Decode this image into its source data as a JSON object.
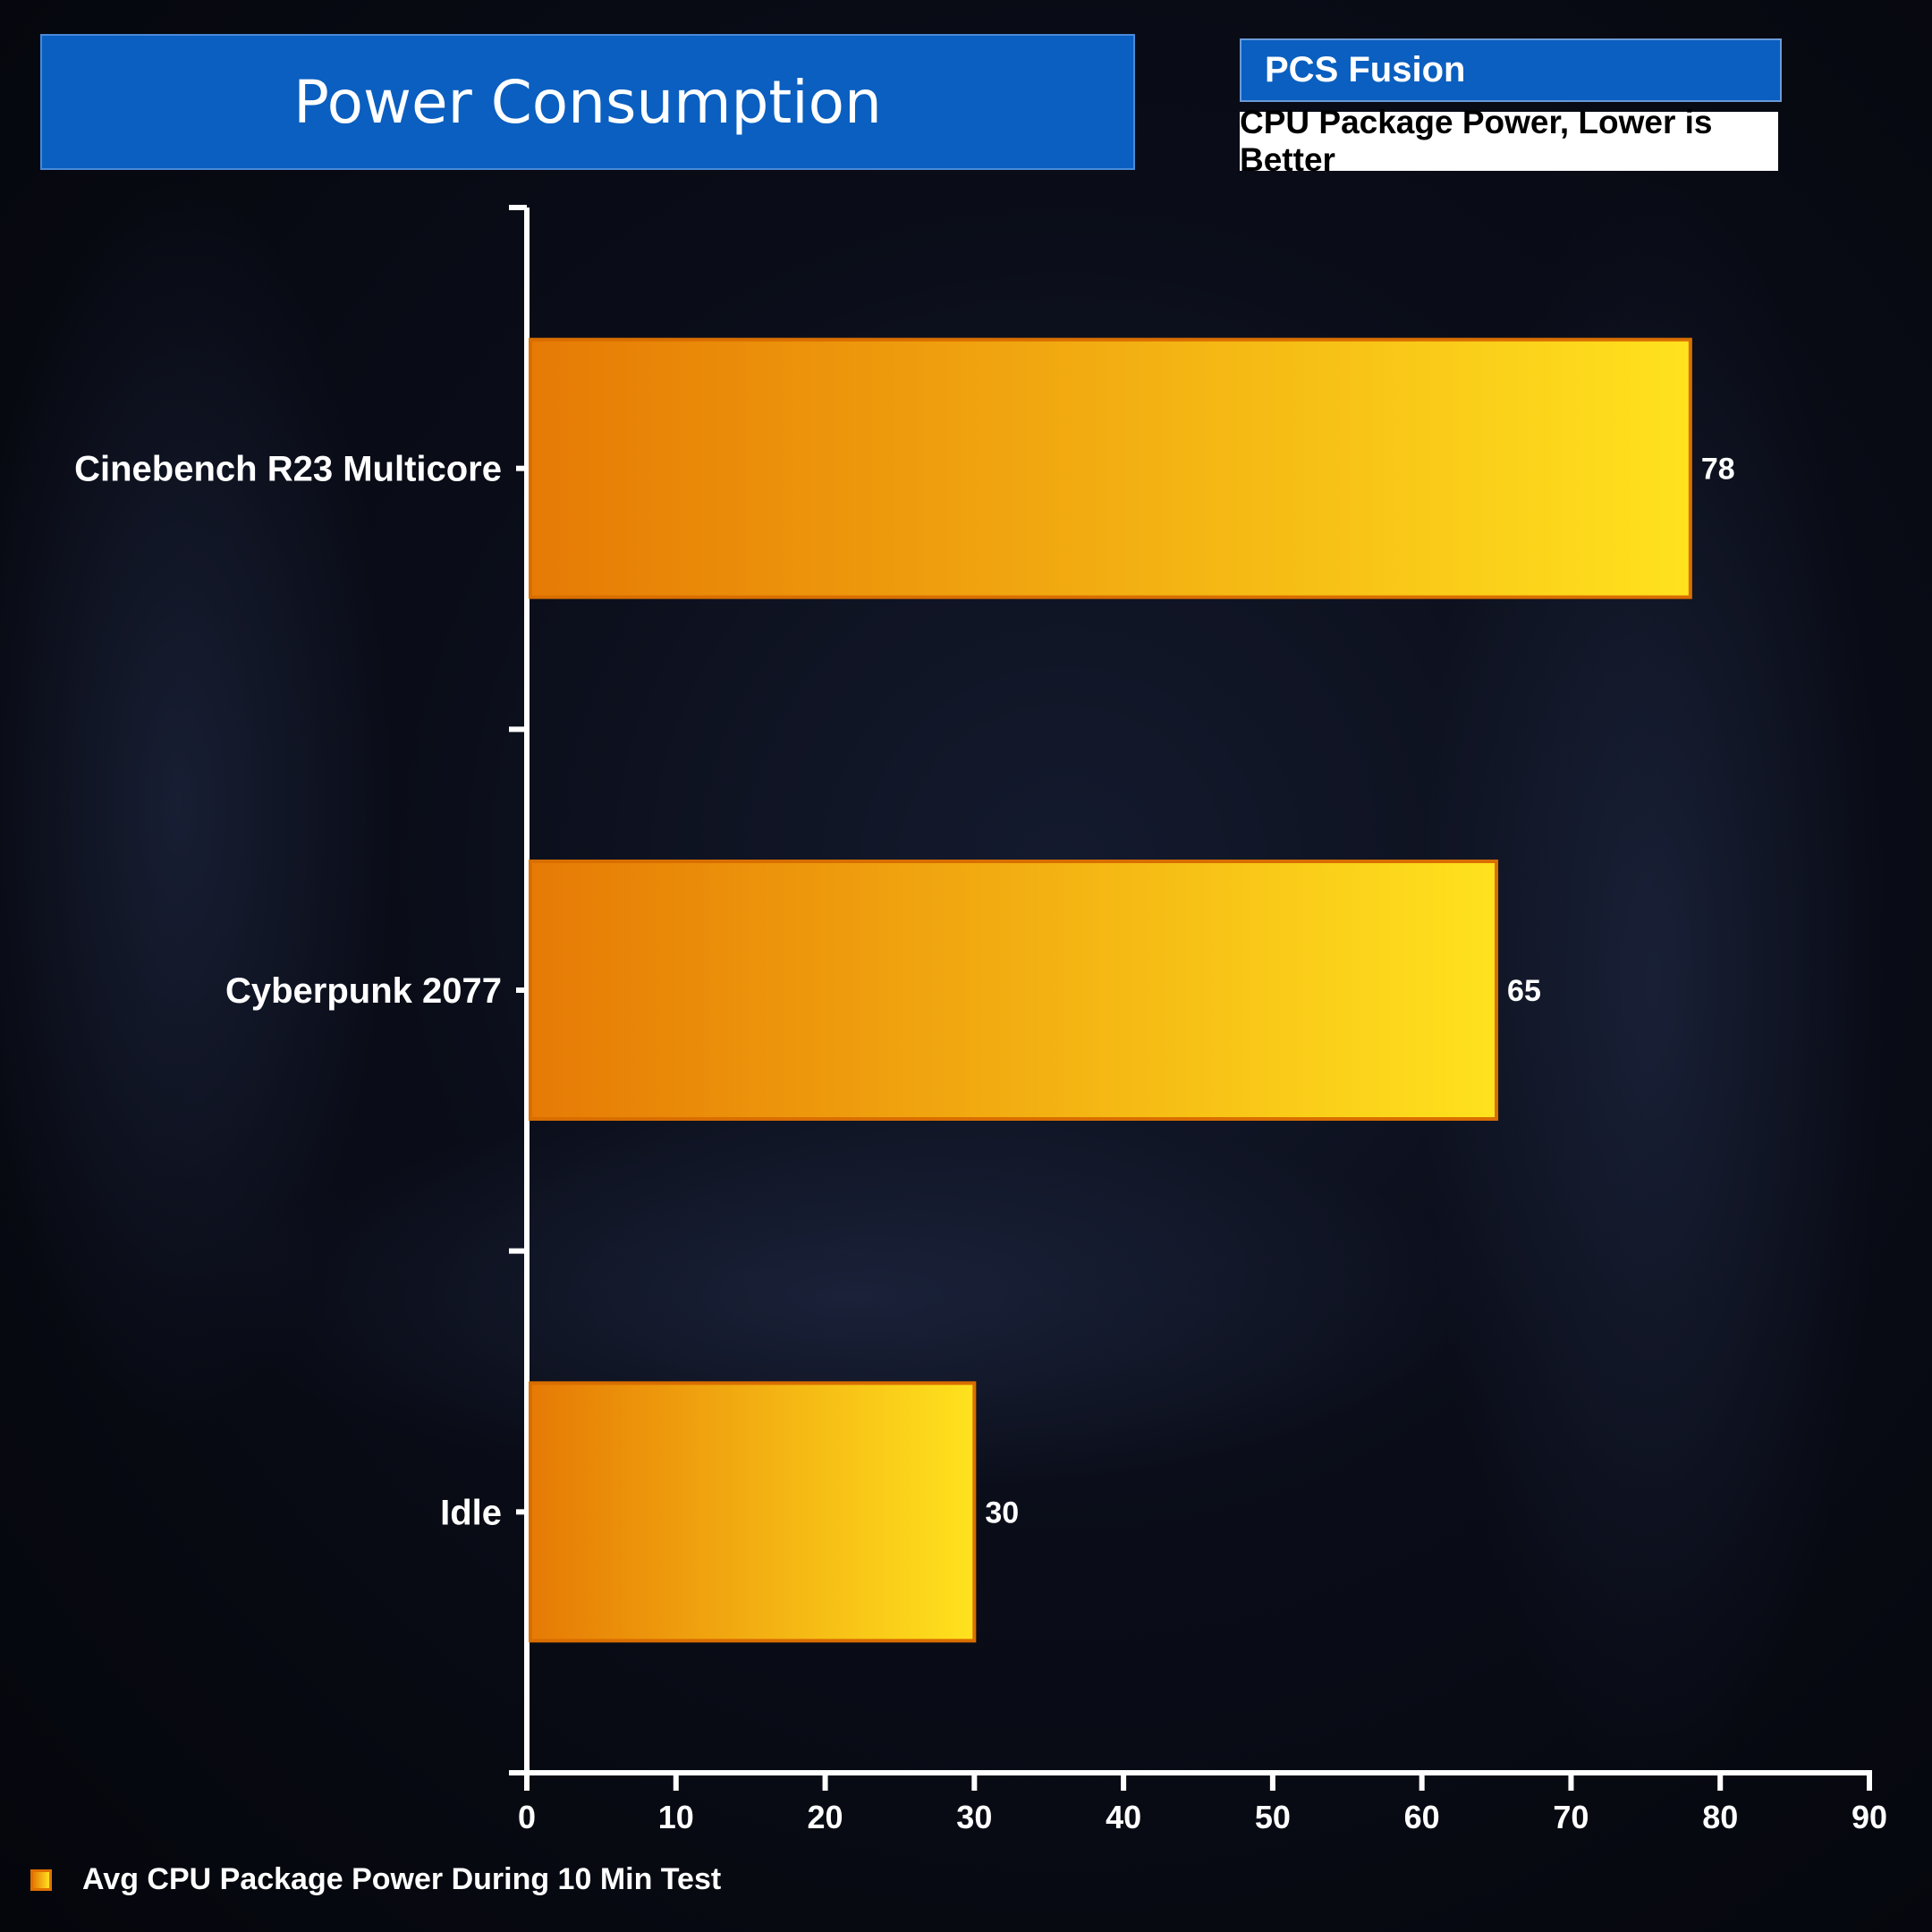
{
  "header": {
    "title": "Power Consumption",
    "system": "PCS Fusion",
    "subtitle": "CPU Package Power, Lower is Better"
  },
  "legend": {
    "label": "Avg CPU Package Power During 10 Min Test"
  },
  "colors": {
    "title_bg": "#0a5fc0",
    "bar_start": "#e67a05",
    "bar_end": "#ffe21e",
    "bar_border": "#d96e00",
    "axis": "#ffffff"
  },
  "chart_data": {
    "type": "bar",
    "orientation": "horizontal",
    "categories": [
      "Cinebench R23 Multicore",
      "Cyberpunk 2077",
      "Idle"
    ],
    "series": [
      {
        "name": "Avg CPU Package Power During 10 Min Test",
        "values": [
          78,
          65,
          30
        ]
      }
    ],
    "xlim": [
      0,
      90
    ],
    "xticks": [
      0,
      10,
      20,
      30,
      40,
      50,
      60,
      70,
      80,
      90
    ],
    "title": "Power Consumption",
    "subtitle": "CPU Package Power, Lower is Better",
    "grid": false,
    "legend_position": "bottom-left"
  }
}
